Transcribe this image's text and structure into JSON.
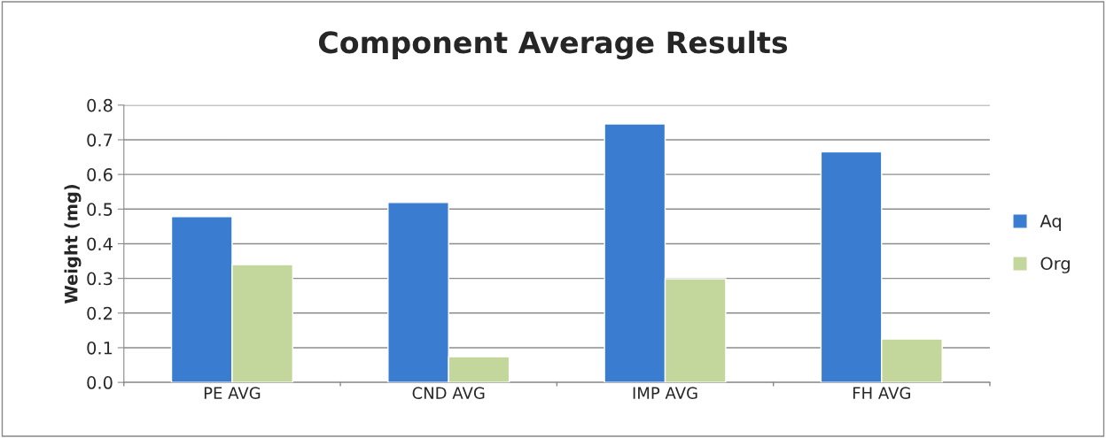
{
  "chart_data": {
    "type": "bar",
    "title": "Component Average Results",
    "ylabel": "Weight (mg)",
    "categories": [
      "PE AVG",
      "CND AVG",
      "IMP AVG",
      "FH AVG"
    ],
    "series": [
      {
        "name": "Aq",
        "color": "#3a7dd0",
        "values": [
          0.478,
          0.519,
          0.746,
          0.665
        ]
      },
      {
        "name": "Org",
        "color": "#c3d69b",
        "values": [
          0.34,
          0.074,
          0.299,
          0.125
        ]
      }
    ],
    "ylim": [
      0,
      0.8
    ],
    "yticks": [
      {
        "value": 0,
        "label": "0.0"
      },
      0.1,
      0.2,
      0.3,
      0.4,
      0.5,
      0.6,
      0.7,
      0.8
    ],
    "grid": "y",
    "legend": "right"
  }
}
